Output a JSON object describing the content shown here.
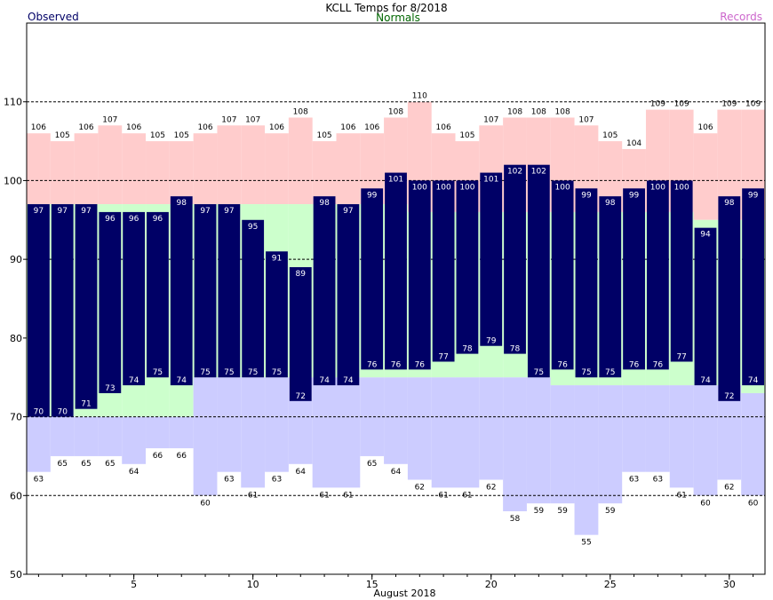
{
  "header": {
    "title": "KCLL Temps for 8/2018",
    "legend_observed": "Observed",
    "legend_normals": "Normals",
    "legend_records": "Records"
  },
  "chart_data": {
    "type": "bar",
    "title": "KCLL Temps for 8/2018",
    "xlabel": "August 2018",
    "ylabel": "",
    "ylim": [
      50,
      120
    ],
    "xlim": [
      0.5,
      31.5
    ],
    "y_ticks": [
      50,
      60,
      70,
      80,
      90,
      100,
      110
    ],
    "x_ticks": [
      5,
      10,
      15,
      20,
      25,
      30
    ],
    "days": [
      1,
      2,
      3,
      4,
      5,
      6,
      7,
      8,
      9,
      10,
      11,
      12,
      13,
      14,
      15,
      16,
      17,
      18,
      19,
      20,
      21,
      22,
      23,
      24,
      25,
      26,
      27,
      28,
      29,
      30,
      31
    ],
    "observed_high": [
      97,
      97,
      97,
      96,
      96,
      96,
      98,
      97,
      97,
      95,
      91,
      89,
      98,
      97,
      99,
      101,
      100,
      100,
      100,
      101,
      102,
      102,
      100,
      99,
      98,
      99,
      100,
      100,
      94,
      98,
      99
    ],
    "observed_low": [
      70,
      70,
      71,
      73,
      74,
      75,
      74,
      75,
      75,
      75,
      75,
      72,
      74,
      74,
      76,
      76,
      76,
      77,
      78,
      79,
      78,
      75,
      76,
      75,
      75,
      76,
      76,
      77,
      74,
      72,
      74
    ],
    "normal_high": [
      97,
      97,
      97,
      97,
      97,
      97,
      97,
      97,
      97,
      97,
      97,
      97,
      97,
      97,
      97,
      97,
      96,
      96,
      96,
      96,
      96,
      96,
      96,
      96,
      96,
      96,
      96,
      96,
      95,
      95,
      95
    ],
    "normal_low": [
      70,
      70,
      70,
      70,
      70,
      70,
      70,
      75,
      75,
      75,
      75,
      75,
      75,
      75,
      75,
      75,
      75,
      75,
      75,
      75,
      75,
      75,
      74,
      74,
      74,
      74,
      74,
      74,
      74,
      74,
      73
    ],
    "record_high": [
      106,
      105,
      106,
      107,
      106,
      105,
      105,
      106,
      107,
      107,
      106,
      108,
      105,
      106,
      106,
      108,
      110,
      106,
      105,
      107,
      108,
      108,
      108,
      107,
      105,
      104,
      109,
      109,
      106,
      109,
      109
    ],
    "record_low": [
      63,
      65,
      65,
      65,
      64,
      66,
      66,
      60,
      63,
      61,
      63,
      64,
      61,
      61,
      65,
      64,
      62,
      61,
      61,
      62,
      58,
      59,
      59,
      55,
      59,
      63,
      63,
      61,
      60,
      62,
      60
    ],
    "colors": {
      "observed": "#000066",
      "normals": "#ccffcc",
      "record_high": "#ffcccc",
      "record_low": "#ccccff",
      "normals_text": "#006600",
      "records_text": "#cc66cc",
      "observed_text": "#000066"
    },
    "grid": "dotted horizontal at 60, 70, 90, 100, 110"
  }
}
